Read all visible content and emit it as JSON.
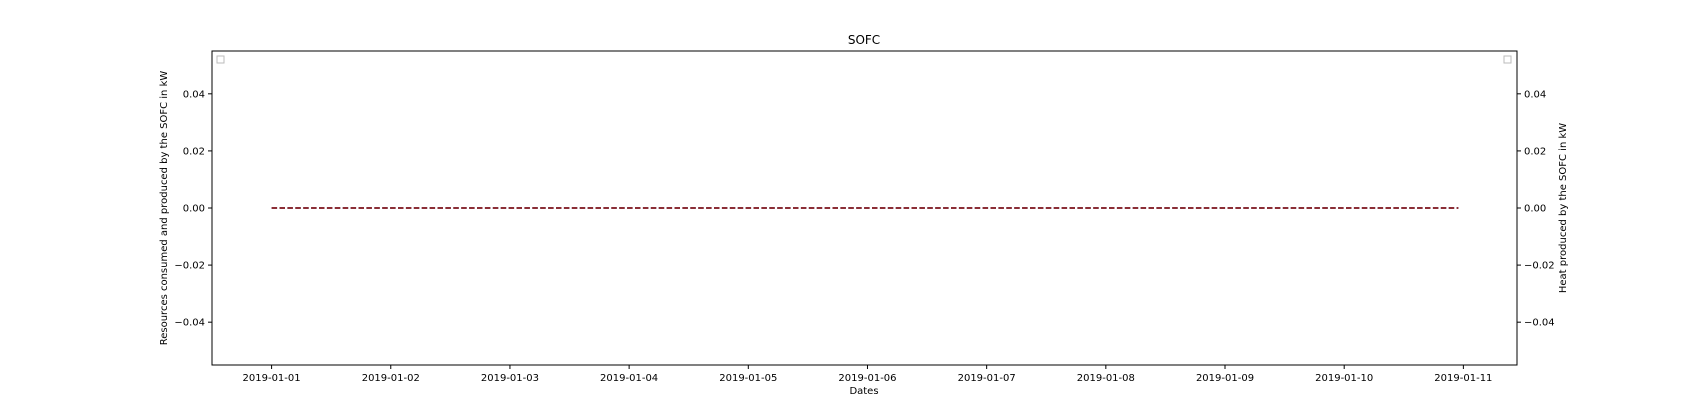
{
  "chart_data": {
    "type": "line",
    "title": "SOFC",
    "xlabel": "Dates",
    "ylabel": "Resources consumed and produced by the SOFC in kW",
    "ylabel_right": "Heat produced by the SOFC in kW",
    "x_tick_labels": [
      "2019-01-01",
      "2019-01-02",
      "2019-01-03",
      "2019-01-04",
      "2019-01-05",
      "2019-01-06",
      "2019-01-07",
      "2019-01-08",
      "2019-01-09",
      "2019-01-10",
      "2019-01-11"
    ],
    "xlim": [
      "2019-01-00.5",
      "2019-01-11.45"
    ],
    "x_range_days": [
      -0.5,
      10.45
    ],
    "ylim": [
      -0.055,
      0.055
    ],
    "y_ticks": [
      -0.04,
      -0.02,
      0.0,
      0.02,
      0.04
    ],
    "y_tick_labels": [
      "−0.04",
      "−0.02",
      "0.00",
      "0.02",
      "0.04"
    ],
    "ylim_right": [
      -0.055,
      0.055
    ],
    "y_ticks_right": [
      -0.04,
      -0.02,
      0.0,
      0.02,
      0.04
    ],
    "y_tick_labels_right": [
      "−0.04",
      "−0.02",
      "0.00",
      "0.02",
      "0.04"
    ],
    "series": [
      {
        "axis": "left",
        "color": "#1f77b4",
        "style": "dashed",
        "x": [
          "2019-01-01",
          "2019-01-10 23:00"
        ],
        "values": [
          0.0,
          0.0
        ]
      },
      {
        "axis": "right",
        "color": "#8b0000",
        "style": "dashed",
        "x": [
          "2019-01-01",
          "2019-01-10 23:00"
        ],
        "values": [
          0.0,
          0.0
        ]
      }
    ],
    "legend": [
      "upper-left",
      "upper-right"
    ],
    "grid": false
  }
}
